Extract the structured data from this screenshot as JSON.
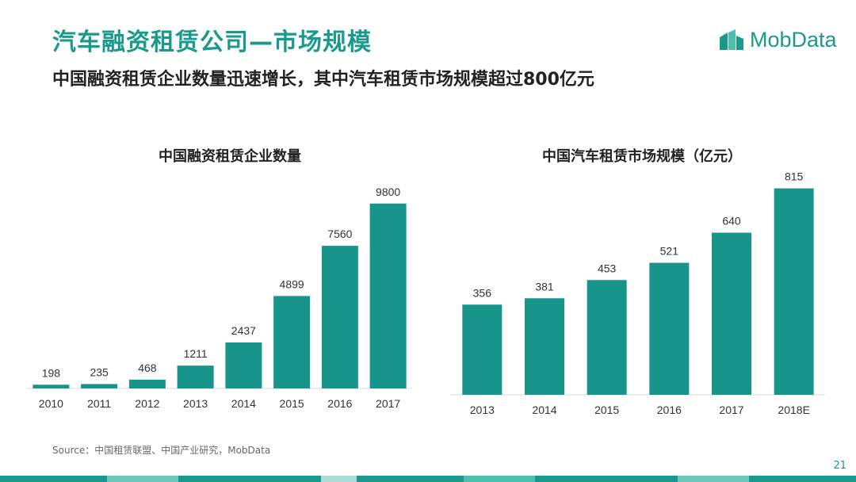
{
  "header": {
    "title": "汽车融资租赁公司—市场规模",
    "subtitle": "中国融资租赁企业数量迅速增长，其中汽车租赁市场规模超过800亿元",
    "logo_text": "MobData"
  },
  "colors": {
    "accent": "#1a9a8c",
    "bar": "#17958a"
  },
  "chart_data": [
    {
      "type": "bar",
      "title": "中国融资租赁企业数量",
      "categories": [
        "2010",
        "2011",
        "2012",
        "2013",
        "2014",
        "2015",
        "2016",
        "2017"
      ],
      "values": [
        198,
        235,
        468,
        1211,
        2437,
        4899,
        7560,
        9800
      ],
      "ylim": [
        0,
        10000
      ],
      "grid": false,
      "legend": "none"
    },
    {
      "type": "bar",
      "title": "中国汽车租赁市场规模（亿元）",
      "categories": [
        "2013",
        "2014",
        "2015",
        "2016",
        "2017",
        "2018E"
      ],
      "values": [
        356,
        381,
        453,
        521,
        640,
        815
      ],
      "ylim": [
        0,
        820
      ],
      "grid": false,
      "legend": "none"
    }
  ],
  "footer": {
    "source": "Source：中国租赁联盟、中国产业研究，MobData",
    "page_number": "21"
  }
}
